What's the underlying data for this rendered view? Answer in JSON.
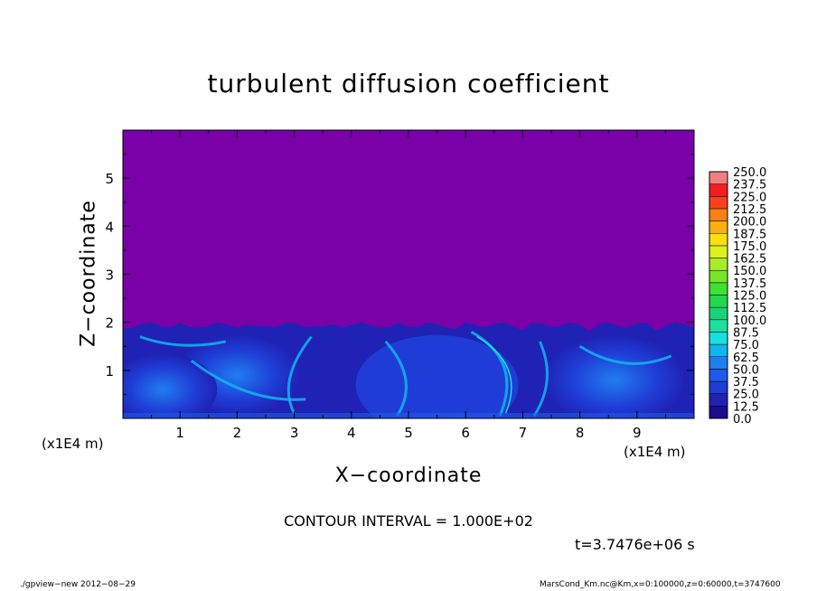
{
  "chart_data": {
    "type": "heatmap",
    "title": "turbulent diffusion coefficient",
    "xlabel": "X−coordinate",
    "ylabel": "Z−coordinate",
    "x_unit": "(x1E4 m)",
    "z_unit": "(x1E4 m)",
    "xlim": [
      0,
      10
    ],
    "ylim": [
      0,
      6
    ],
    "x_ticks": [
      "1",
      "2",
      "3",
      "4",
      "5",
      "6",
      "7",
      "8",
      "9"
    ],
    "y_ticks": [
      "1",
      "2",
      "3",
      "4",
      "5"
    ],
    "colorbar_levels": [
      "0.0",
      "12.5",
      "25.0",
      "37.5",
      "50.0",
      "62.5",
      "75.0",
      "87.5",
      "100.0",
      "112.5",
      "125.0",
      "137.5",
      "150.0",
      "162.5",
      "175.0",
      "187.5",
      "200.0",
      "212.5",
      "225.0",
      "237.5",
      "250.0"
    ],
    "colorbar_colors": [
      "#7a00a8",
      "#1c0a8f",
      "#1f22b4",
      "#1f3dd6",
      "#1f5ae6",
      "#1f7ef0",
      "#10b6f0",
      "#19e0e0",
      "#1de0a0",
      "#1ad27a",
      "#22d84c",
      "#3ee032",
      "#76e62a",
      "#a8ec28",
      "#dcf020",
      "#f8e010",
      "#f8b010",
      "#f88018",
      "#f84020",
      "#f02020",
      "#f08080"
    ],
    "background_value_color": "#7a00a8",
    "boundary_layer_top_z": 2.0,
    "contour_interval": "CONTOUR INTERVAL = 1.000E+02",
    "time_label": "t=3.7476e+06 s"
  },
  "footer": {
    "left": "./gpview−new  2012−08−29",
    "right": "MarsCond_Km.nc@Km,x=0:100000,z=0:60000,t=3747600"
  }
}
